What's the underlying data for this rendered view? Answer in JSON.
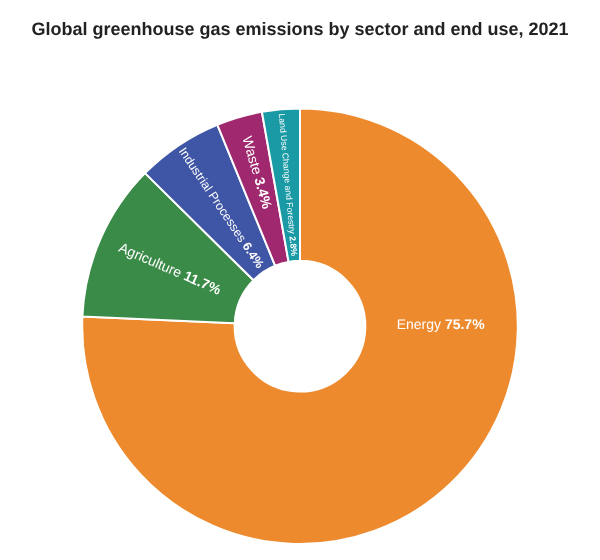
{
  "chart_data": {
    "type": "donut",
    "title": "Global greenhouse gas emissions by sector and end use, 2021",
    "categories": [
      "Energy",
      "Agriculture",
      "Industrial Processes",
      "Waste",
      "Land Use Change and Forestry"
    ],
    "values": [
      75.7,
      11.7,
      6.4,
      3.4,
      2.8
    ],
    "value_labels": [
      "75.7%",
      "11.7%",
      "6.4%",
      "3.4%",
      "2.8%"
    ],
    "colors": [
      "#ee8a2e",
      "#3a8a48",
      "#3f55a5",
      "#a0286e",
      "#1a9aa5"
    ],
    "legend": false
  }
}
